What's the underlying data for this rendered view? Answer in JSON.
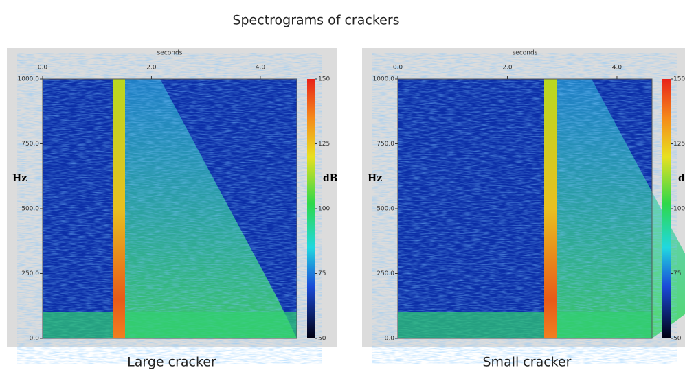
{
  "title": "Spectrograms of crackers",
  "chart_data": [
    {
      "type": "spectrogram",
      "caption": "Large cracker",
      "x_label": "seconds",
      "y_label": "Hz",
      "colorbar_label": "dB",
      "xlim": [
        0,
        4.67
      ],
      "xticks": [
        {
          "value": 0,
          "label": "0.0"
        },
        {
          "value": 2,
          "label": "2.0"
        },
        {
          "value": 4,
          "label": "4.0"
        }
      ],
      "ylim": [
        0,
        1000
      ],
      "yticks": [
        {
          "value": 0,
          "label": "0.0"
        },
        {
          "value": 250,
          "label": "250.0"
        },
        {
          "value": 500,
          "label": "500.0"
        },
        {
          "value": 750,
          "label": "750.0"
        },
        {
          "value": 1000,
          "label": "1000.0"
        }
      ],
      "clim": [
        50,
        150
      ],
      "cticks": [
        50,
        75,
        100,
        125,
        150
      ]
    },
    {
      "type": "spectrogram",
      "caption": "Small cracker",
      "x_label": "seconds",
      "y_label": "Hz",
      "colorbar_label": "dB",
      "xlim": [
        0,
        4.64
      ],
      "xticks": [
        {
          "value": 0,
          "label": "0.0"
        },
        {
          "value": 2,
          "label": "2.0"
        },
        {
          "value": 4,
          "label": "4.0"
        }
      ],
      "ylim": [
        0,
        1000
      ],
      "yticks": [
        {
          "value": 0,
          "label": "0.0"
        },
        {
          "value": 250,
          "label": "250.0"
        },
        {
          "value": 500,
          "label": "500.0"
        },
        {
          "value": 750,
          "label": "750.0"
        },
        {
          "value": 1000,
          "label": "1000.0"
        }
      ],
      "clim": [
        50,
        150
      ],
      "cticks": [
        50,
        75,
        100,
        125,
        150
      ]
    }
  ]
}
